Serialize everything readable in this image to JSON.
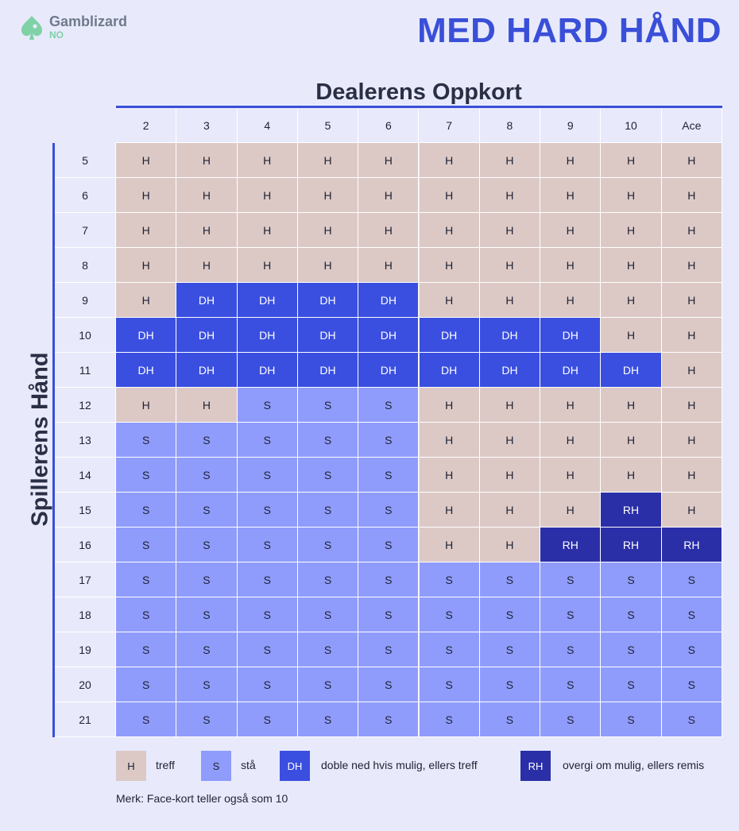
{
  "brand": {
    "name": "Gamblizard",
    "sub": "NO"
  },
  "title": "MED HARD HÅND",
  "colors": {
    "H": "#dcc9c6",
    "S": "#8f9cfc",
    "DH": "#3a4fe0",
    "RH": "#2a2fa8",
    "header_bg": "#e8eafb",
    "accent": "#3a4fd8"
  },
  "chart_data": {
    "type": "table",
    "title": "MED HARD HÅND",
    "xlabel": "Dealerens Oppkort",
    "ylabel": "Spillerens Hånd",
    "columns": [
      "2",
      "3",
      "4",
      "5",
      "6",
      "7",
      "8",
      "9",
      "10",
      "Ace"
    ],
    "rows": [
      "5",
      "6",
      "7",
      "8",
      "9",
      "10",
      "11",
      "12",
      "13",
      "14",
      "15",
      "16",
      "17",
      "18",
      "19",
      "20",
      "21"
    ],
    "cells": [
      [
        "H",
        "H",
        "H",
        "H",
        "H",
        "H",
        "H",
        "H",
        "H",
        "H"
      ],
      [
        "H",
        "H",
        "H",
        "H",
        "H",
        "H",
        "H",
        "H",
        "H",
        "H"
      ],
      [
        "H",
        "H",
        "H",
        "H",
        "H",
        "H",
        "H",
        "H",
        "H",
        "H"
      ],
      [
        "H",
        "H",
        "H",
        "H",
        "H",
        "H",
        "H",
        "H",
        "H",
        "H"
      ],
      [
        "H",
        "DH",
        "DH",
        "DH",
        "DH",
        "H",
        "H",
        "H",
        "H",
        "H"
      ],
      [
        "DH",
        "DH",
        "DH",
        "DH",
        "DH",
        "DH",
        "DH",
        "DH",
        "H",
        "H"
      ],
      [
        "DH",
        "DH",
        "DH",
        "DH",
        "DH",
        "DH",
        "DH",
        "DH",
        "DH",
        "H"
      ],
      [
        "H",
        "H",
        "S",
        "S",
        "S",
        "H",
        "H",
        "H",
        "H",
        "H"
      ],
      [
        "S",
        "S",
        "S",
        "S",
        "S",
        "H",
        "H",
        "H",
        "H",
        "H"
      ],
      [
        "S",
        "S",
        "S",
        "S",
        "S",
        "H",
        "H",
        "H",
        "H",
        "H"
      ],
      [
        "S",
        "S",
        "S",
        "S",
        "S",
        "H",
        "H",
        "H",
        "RH",
        "H"
      ],
      [
        "S",
        "S",
        "S",
        "S",
        "S",
        "H",
        "H",
        "RH",
        "RH",
        "RH"
      ],
      [
        "S",
        "S",
        "S",
        "S",
        "S",
        "S",
        "S",
        "S",
        "S",
        "S"
      ],
      [
        "S",
        "S",
        "S",
        "S",
        "S",
        "S",
        "S",
        "S",
        "S",
        "S"
      ],
      [
        "S",
        "S",
        "S",
        "S",
        "S",
        "S",
        "S",
        "S",
        "S",
        "S"
      ],
      [
        "S",
        "S",
        "S",
        "S",
        "S",
        "S",
        "S",
        "S",
        "S",
        "S"
      ],
      [
        "S",
        "S",
        "S",
        "S",
        "S",
        "S",
        "S",
        "S",
        "S",
        "S"
      ]
    ],
    "legend": [
      {
        "code": "H",
        "label": "treff"
      },
      {
        "code": "S",
        "label": "stå"
      },
      {
        "code": "DH",
        "label": "doble ned hvis mulig, ellers treff"
      },
      {
        "code": "RH",
        "label": "overgi om mulig, ellers remis"
      }
    ],
    "note": "Merk: Face-kort teller også som 10"
  }
}
